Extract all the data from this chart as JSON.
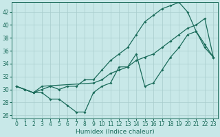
{
  "background_color": "#c8e8e8",
  "grid_color": "#a8cccc",
  "line_color": "#1a6b5a",
  "xlabel": "Humidex (Indice chaleur)",
  "xlim": [
    -0.5,
    23.5
  ],
  "ylim": [
    25.5,
    43.5
  ],
  "xticks": [
    0,
    1,
    2,
    3,
    4,
    5,
    6,
    7,
    8,
    9,
    10,
    11,
    12,
    13,
    14,
    15,
    16,
    17,
    18,
    19,
    20,
    21,
    22,
    23
  ],
  "yticks": [
    26,
    28,
    30,
    32,
    34,
    36,
    38,
    40,
    42
  ],
  "line1_x": [
    0,
    1,
    2,
    3,
    4,
    5,
    6,
    7,
    8,
    9,
    10,
    11,
    12,
    13,
    14,
    15,
    16,
    17,
    18,
    19,
    20,
    21,
    22,
    23
  ],
  "line1_y": [
    30.5,
    30.0,
    29.5,
    29.5,
    28.5,
    28.5,
    27.5,
    26.5,
    26.5,
    29.5,
    30.5,
    31.0,
    33.5,
    33.5,
    35.5,
    30.5,
    31.0,
    33.0,
    35.0,
    36.5,
    38.5,
    39.0,
    36.5,
    35.0
  ],
  "line2_x": [
    0,
    1,
    2,
    3,
    4,
    5,
    6,
    7,
    8,
    9,
    10,
    11,
    12,
    13,
    14,
    15,
    16,
    17,
    18,
    19,
    20,
    21,
    22,
    23
  ],
  "line2_y": [
    30.5,
    30.0,
    29.5,
    30.0,
    30.5,
    30.0,
    30.5,
    30.5,
    31.5,
    31.5,
    33.0,
    34.5,
    35.5,
    36.5,
    38.5,
    40.5,
    41.5,
    42.5,
    43.0,
    43.5,
    42.0,
    39.0,
    37.0,
    35.0
  ],
  "line3_x": [
    0,
    2,
    3,
    9,
    10,
    11,
    12,
    13,
    14,
    15,
    16,
    17,
    18,
    19,
    20,
    21,
    22,
    23
  ],
  "line3_y": [
    30.5,
    29.5,
    30.5,
    31.0,
    31.5,
    32.5,
    33.0,
    33.5,
    34.5,
    35.0,
    35.5,
    36.5,
    37.5,
    38.5,
    39.5,
    40.0,
    41.0,
    35.0
  ]
}
